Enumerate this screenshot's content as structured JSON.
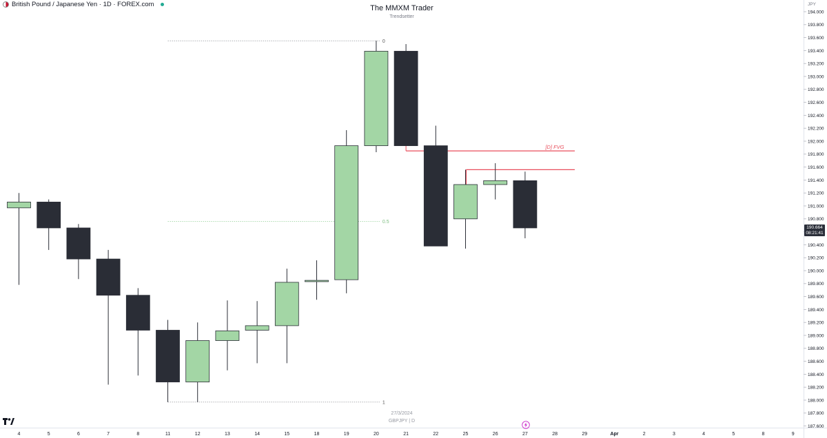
{
  "header": {
    "symbol_text": "British Pound / Japanese Yen · 1D · FOREX.com",
    "icon": "gbp-jpy-flag-icon",
    "status_color": "#22ab94"
  },
  "indicator": {
    "title": "The MMXM Trader",
    "subtitle": "Trendsetter"
  },
  "watermark": {
    "date": "27/3/2024",
    "symbol": "GBPJPY | D"
  },
  "price_axis": {
    "unit": "JPY",
    "current_price": "190.664",
    "countdown": "08:21:41"
  },
  "colors": {
    "up": "#a3d6a5",
    "down": "#2a2d36",
    "wick": "#2a2d36",
    "fvg_line": "#e84d5b",
    "fib_line": "#a4a6ab",
    "fib_mid_line": "#a3d6a5"
  },
  "chart_data": {
    "type": "candlestick",
    "y_range": [
      187.6,
      194.2
    ],
    "y_ticks": [
      "187.600",
      "187.800",
      "188.000",
      "188.200",
      "188.400",
      "188.600",
      "188.800",
      "189.000",
      "189.200",
      "189.400",
      "189.600",
      "189.800",
      "190.000",
      "190.200",
      "190.400",
      "190.600",
      "190.800",
      "191.000",
      "191.200",
      "191.400",
      "191.600",
      "191.800",
      "192.000",
      "192.200",
      "192.400",
      "192.600",
      "192.800",
      "193.000",
      "193.200",
      "193.400",
      "193.600",
      "193.800",
      "194.000"
    ],
    "x_labels": [
      "4",
      "5",
      "6",
      "7",
      "8",
      "11",
      "12",
      "13",
      "14",
      "15",
      "18",
      "19",
      "20",
      "21",
      "22",
      "25",
      "26",
      "27",
      "28",
      "29",
      "Apr",
      "2",
      "3",
      "4",
      "5",
      "8",
      "9"
    ],
    "candles": [
      {
        "date": "4",
        "open": 190.97,
        "high": 191.2,
        "low": 189.78,
        "close": 191.06
      },
      {
        "date": "5",
        "open": 191.06,
        "high": 191.1,
        "low": 190.32,
        "close": 190.66
      },
      {
        "date": "6",
        "open": 190.66,
        "high": 190.72,
        "low": 189.87,
        "close": 190.18
      },
      {
        "date": "7",
        "open": 190.18,
        "high": 190.32,
        "low": 188.24,
        "close": 189.62
      },
      {
        "date": "8",
        "open": 189.62,
        "high": 189.73,
        "low": 188.38,
        "close": 189.08
      },
      {
        "date": "11",
        "open": 189.08,
        "high": 189.24,
        "low": 187.97,
        "close": 188.28
      },
      {
        "date": "12",
        "open": 188.28,
        "high": 189.2,
        "low": 187.97,
        "close": 188.92
      },
      {
        "date": "13",
        "open": 188.92,
        "high": 189.54,
        "low": 188.46,
        "close": 189.07
      },
      {
        "date": "14",
        "open": 189.08,
        "high": 189.53,
        "low": 188.57,
        "close": 189.15
      },
      {
        "date": "15",
        "open": 189.15,
        "high": 190.03,
        "low": 188.57,
        "close": 189.82
      },
      {
        "date": "18",
        "open": 189.83,
        "high": 190.16,
        "low": 189.55,
        "close": 189.85
      },
      {
        "date": "19",
        "open": 189.86,
        "high": 192.17,
        "low": 189.65,
        "close": 191.93
      },
      {
        "date": "20",
        "open": 191.93,
        "high": 193.55,
        "low": 191.83,
        "close": 193.39
      },
      {
        "date": "21",
        "open": 193.39,
        "high": 193.5,
        "low": 191.93,
        "close": 191.93
      },
      {
        "date": "22",
        "open": 191.93,
        "high": 192.24,
        "low": 190.38,
        "close": 190.38
      },
      {
        "date": "25",
        "open": 190.8,
        "high": 191.56,
        "low": 190.34,
        "close": 191.33
      },
      {
        "date": "26",
        "open": 191.33,
        "high": 191.66,
        "low": 191.1,
        "close": 191.39
      },
      {
        "date": "27",
        "open": 191.39,
        "high": 191.53,
        "low": 190.5,
        "close": 190.66
      }
    ],
    "annotations": {
      "fib_levels": [
        {
          "label": "0",
          "price": 193.55
        },
        {
          "label": "0.5",
          "price": 190.76
        },
        {
          "label": "1",
          "price": 187.97
        }
      ],
      "fvg": {
        "label": "[D] FVG",
        "line1_price": 191.85,
        "line2_price": 191.56
      }
    },
    "grid": false
  }
}
